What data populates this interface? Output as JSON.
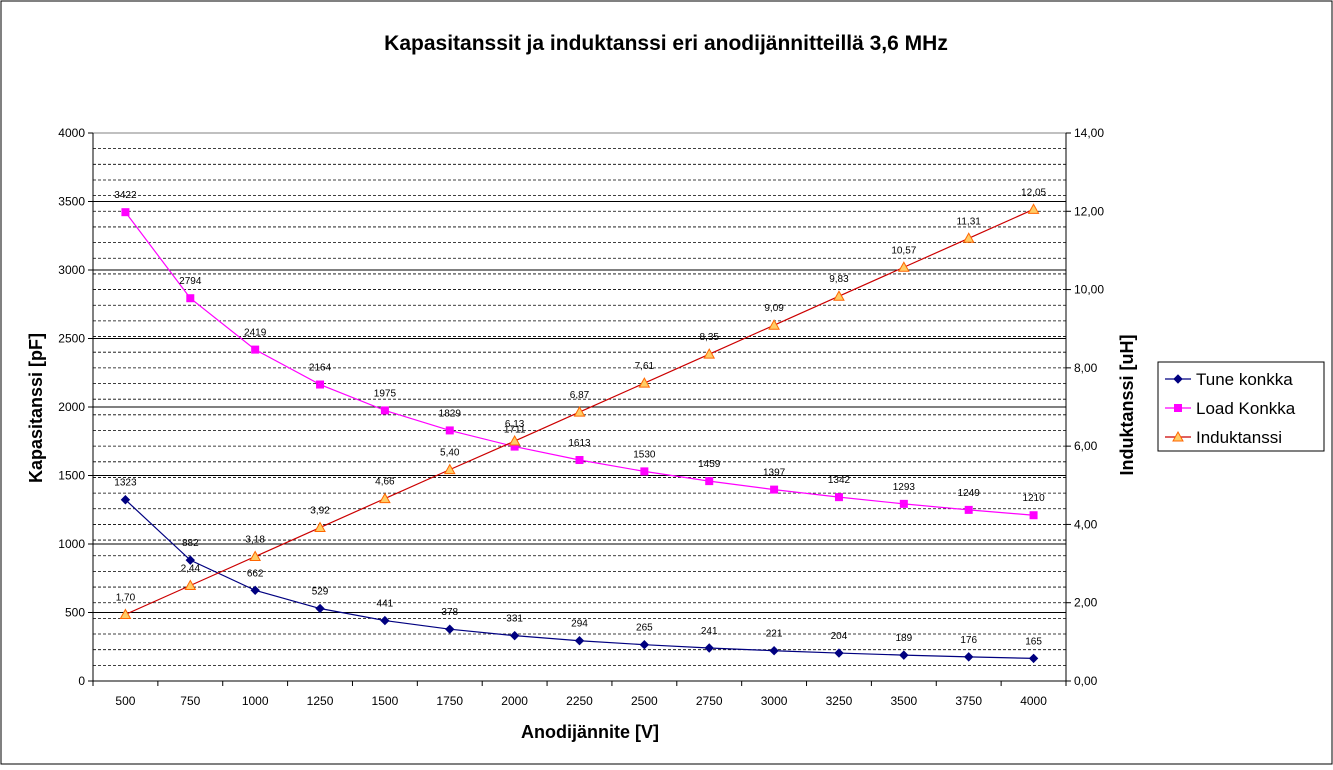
{
  "chart_data": {
    "type": "line",
    "title": "Kapasitanssit ja induktanssi eri anodijännitteillä 3,6 MHz",
    "xlabel": "Anodijännite [V]",
    "ylabel": "Kapasitanssi [pF]",
    "y2label": "Induktanssi [uH]",
    "categories": [
      "500",
      "750",
      "1000",
      "1250",
      "1500",
      "1750",
      "2000",
      "2250",
      "2500",
      "2750",
      "3000",
      "3250",
      "3500",
      "3750",
      "4000"
    ],
    "ylim": [
      0,
      4000
    ],
    "y2lim": [
      0,
      14
    ],
    "y_ticks": [
      "0",
      "500",
      "1000",
      "1500",
      "2000",
      "2500",
      "3000",
      "3500",
      "4000"
    ],
    "y2_ticks": [
      "0,00",
      "2,00",
      "4,00",
      "6,00",
      "8,00",
      "10,00",
      "12,00",
      "14,00"
    ],
    "grid": true,
    "legend_position": "right",
    "series": [
      {
        "name": "Tune konkka",
        "axis": "left",
        "color": "#000080",
        "marker": "diamond",
        "values": [
          1323,
          882,
          662,
          529,
          441,
          378,
          331,
          294,
          265,
          241,
          221,
          204,
          189,
          176,
          165
        ],
        "labels": [
          "1323",
          "882",
          "662",
          "529",
          "441",
          "378",
          "331",
          "294",
          "265",
          "241",
          "221",
          "204",
          "189",
          "176",
          "165"
        ]
      },
      {
        "name": "Load Konkka",
        "axis": "left",
        "color": "#ff00ff",
        "marker": "square",
        "values": [
          3422,
          2794,
          2419,
          2164,
          1975,
          1829,
          1711,
          1613,
          1530,
          1459,
          1397,
          1342,
          1293,
          1249,
          1210
        ],
        "labels": [
          "3422",
          "2794",
          "2419",
          "2164",
          "1975",
          "1829",
          "1711",
          "1613",
          "1530",
          "1459",
          "1397",
          "1342",
          "1293",
          "1249",
          "1210"
        ]
      },
      {
        "name": "Induktanssi",
        "axis": "right",
        "color": "#cc0000",
        "marker_fill": "#ffcc66",
        "marker_stroke": "#ff6600",
        "marker": "triangle",
        "values": [
          1.7,
          2.44,
          3.18,
          3.92,
          4.66,
          5.4,
          6.13,
          6.87,
          7.61,
          8.35,
          9.09,
          9.83,
          10.57,
          11.31,
          12.05
        ],
        "labels": [
          "1,70",
          "2,44",
          "3,18",
          "3,92",
          "4,66",
          "5,40",
          "6,13",
          "6,87",
          "7,61",
          "8,35",
          "9,09",
          "9,83",
          "10,57",
          "11,31",
          "12,05"
        ]
      }
    ]
  }
}
